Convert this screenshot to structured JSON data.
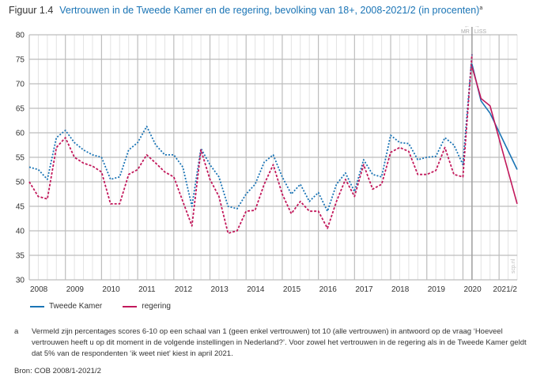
{
  "figure": {
    "number": "Figuur 1.4",
    "title": "Vertrouwen in de Tweede Kamer en de regering, bevolking van 18+, 2008-2021/2 (in procenten)",
    "title_footnote_marker": "a"
  },
  "annotations": {
    "mr_label": "MR",
    "liss_label": "LISS",
    "left_arrow": "←",
    "right_arrow": "→",
    "watermark": "scp.nl"
  },
  "footnote": {
    "marker": "a",
    "text": "Vermeld zijn percentages scores 6-10 op een schaal van 1 (geen enkel vertrouwen) tot 10 (alle vertrouwen) in antwoord op de vraag ‘Hoeveel vertrouwen heeft u op dit moment in de volgende instellingen in Nederland?’. Voor zowel het vertrouwen in de regering als in de Tweede Kamer geldt dat 5% van de respondenten ‘ik weet niet’ kiest in april 2021."
  },
  "source": "Bron: COB 2008/1-2021/2",
  "colors": {
    "tweede_kamer": "#1a74b5",
    "regering": "#c2185b",
    "grid_major": "#bdbdbd",
    "grid_minor": "#e3e3e3",
    "axis_text": "#333333",
    "title_blue": "#1a74b5"
  },
  "chart_data": {
    "type": "line",
    "title": "Vertrouwen in de Tweede Kamer en de regering, bevolking van 18+, 2008-2021/2 (in procenten)",
    "xlabel": "",
    "ylabel": "",
    "ylim": [
      30,
      80
    ],
    "yticks": [
      30,
      35,
      40,
      45,
      50,
      55,
      60,
      65,
      70,
      75,
      80
    ],
    "xlim": [
      2008.0,
      2021.5
    ],
    "xtick_labels": [
      "2008",
      "2009",
      "2010",
      "2011",
      "2012",
      "2013",
      "2014",
      "2015",
      "2016",
      "2017",
      "2018",
      "2019",
      "2020",
      "2021/2"
    ],
    "xtick_positions": [
      2008,
      2009,
      2010,
      2011,
      2012,
      2013,
      2014,
      2015,
      2016,
      2017,
      2018,
      2019,
      2020,
      2021.5
    ],
    "grid": true,
    "legend": "bottom-left",
    "mode_break_x": 2020.25,
    "series": [
      {
        "name": "Tweede Kamer",
        "color_key": "tweede_kamer",
        "segments": [
          {
            "style": "dotted",
            "label": "MR",
            "x": [
              2008.0,
              2008.25,
              2008.5,
              2008.75,
              2009.0,
              2009.25,
              2009.5,
              2009.75,
              2010.0,
              2010.25,
              2010.5,
              2010.75,
              2011.0,
              2011.25,
              2011.5,
              2011.75,
              2012.0,
              2012.25,
              2012.5,
              2012.75,
              2013.0,
              2013.25,
              2013.5,
              2013.75,
              2014.0,
              2014.25,
              2014.5,
              2014.75,
              2015.0,
              2015.25,
              2015.5,
              2015.75,
              2016.0,
              2016.25,
              2016.5,
              2016.75,
              2017.0,
              2017.25,
              2017.5,
              2017.75,
              2018.0,
              2018.25,
              2018.5,
              2018.75,
              2019.0,
              2019.25,
              2019.5,
              2019.75,
              2020.0,
              2020.25
            ],
            "values": [
              53.0,
              52.5,
              50.5,
              59.0,
              60.5,
              58.0,
              56.5,
              55.5,
              55.0,
              50.5,
              51.0,
              56.5,
              58.0,
              61.3,
              57.5,
              55.5,
              55.5,
              53.0,
              45.0,
              56.8,
              53.5,
              51.0,
              45.0,
              44.5,
              47.5,
              49.5,
              54.0,
              55.5,
              51.0,
              47.5,
              49.5,
              46.0,
              47.8,
              44.0,
              49.5,
              51.8,
              48.0,
              54.5,
              51.5,
              51.0,
              59.5,
              58.0,
              57.8,
              54.5,
              55.0,
              55.2,
              59.0,
              57.5,
              53.5,
              76.0
            ]
          },
          {
            "style": "solid",
            "label": "LISS",
            "x": [
              2020.25,
              2020.5,
              2020.75,
              2021.5
            ],
            "values": [
              74.0,
              66.5,
              64.0,
              52.5
            ]
          }
        ]
      },
      {
        "name": "regering",
        "color_key": "regering",
        "segments": [
          {
            "style": "dashed",
            "label": "MR",
            "x": [
              2008.0,
              2008.25,
              2008.5,
              2008.75,
              2009.0,
              2009.25,
              2009.5,
              2009.75,
              2010.0,
              2010.25,
              2010.5,
              2010.75,
              2011.0,
              2011.25,
              2011.5,
              2011.75,
              2012.0,
              2012.25,
              2012.5,
              2012.75,
              2013.0,
              2013.25,
              2013.5,
              2013.75,
              2014.0,
              2014.25,
              2014.5,
              2014.75,
              2015.0,
              2015.25,
              2015.5,
              2015.75,
              2016.0,
              2016.25,
              2016.5,
              2016.75,
              2017.0,
              2017.25,
              2017.5,
              2017.75,
              2018.0,
              2018.25,
              2018.5,
              2018.75,
              2019.0,
              2019.25,
              2019.5,
              2019.75,
              2020.0,
              2020.25
            ],
            "values": [
              50.0,
              47.0,
              46.5,
              57.0,
              59.0,
              55.0,
              53.8,
              53.2,
              52.0,
              45.5,
              45.5,
              51.5,
              52.5,
              55.5,
              53.8,
              52.0,
              51.0,
              46.0,
              41.0,
              56.5,
              50.5,
              47.0,
              39.5,
              40.0,
              44.0,
              44.2,
              49.5,
              53.5,
              47.5,
              43.5,
              46.0,
              44.0,
              44.0,
              40.5,
              46.0,
              50.5,
              47.0,
              53.5,
              48.5,
              49.5,
              56.0,
              57.0,
              56.2,
              51.5,
              51.5,
              52.3,
              57.0,
              51.5,
              51.0,
              76.0
            ]
          },
          {
            "style": "solid",
            "label": "LISS",
            "x": [
              2020.25,
              2020.5,
              2020.75,
              2021.5
            ],
            "values": [
              73.5,
              67.0,
              65.5,
              45.5
            ]
          }
        ]
      }
    ]
  }
}
